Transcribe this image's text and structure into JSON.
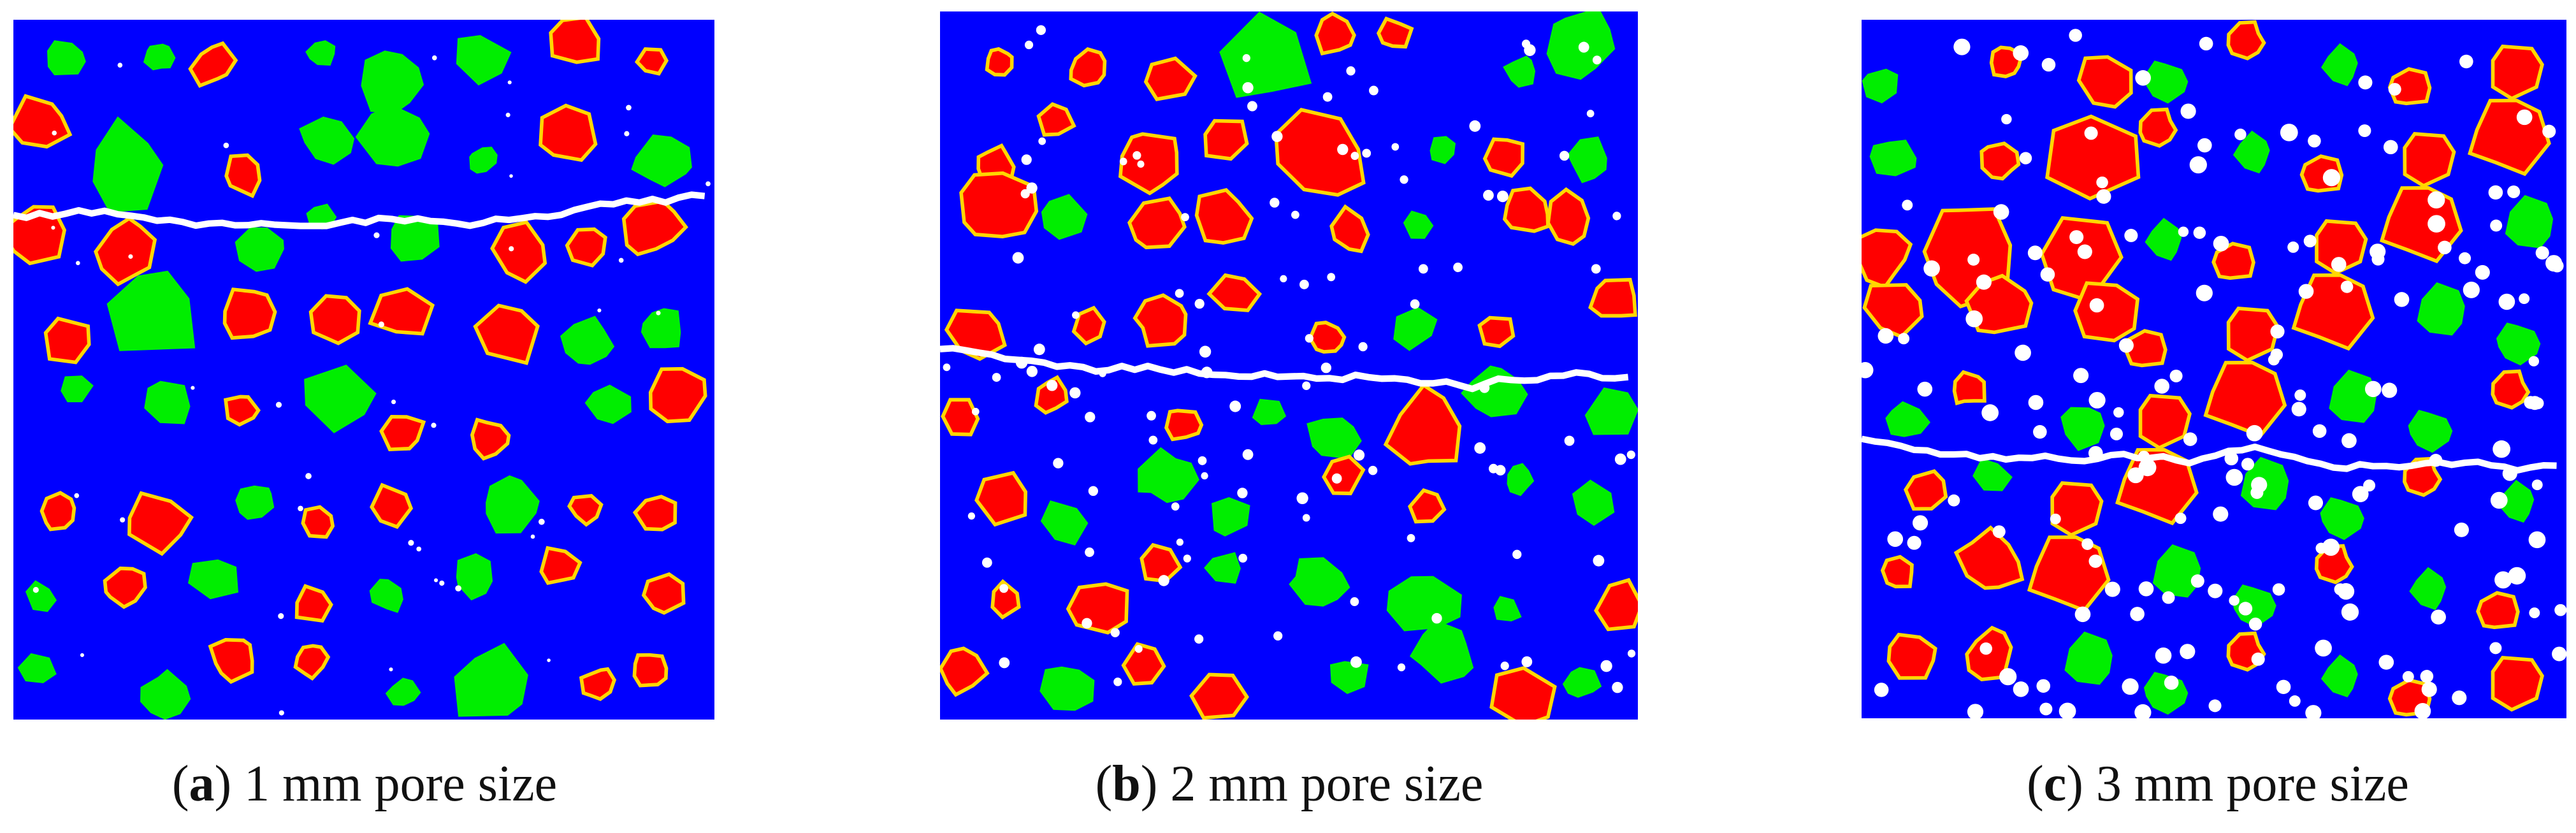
{
  "panels": [
    {
      "caption_parts": [
        "(",
        "a",
        ") 1 mm pore size"
      ]
    },
    {
      "caption_parts": [
        "(",
        "b",
        ") 2 mm pore size"
      ]
    },
    {
      "caption_parts": [
        "(",
        "c",
        ") 3 mm pore size"
      ]
    }
  ]
}
